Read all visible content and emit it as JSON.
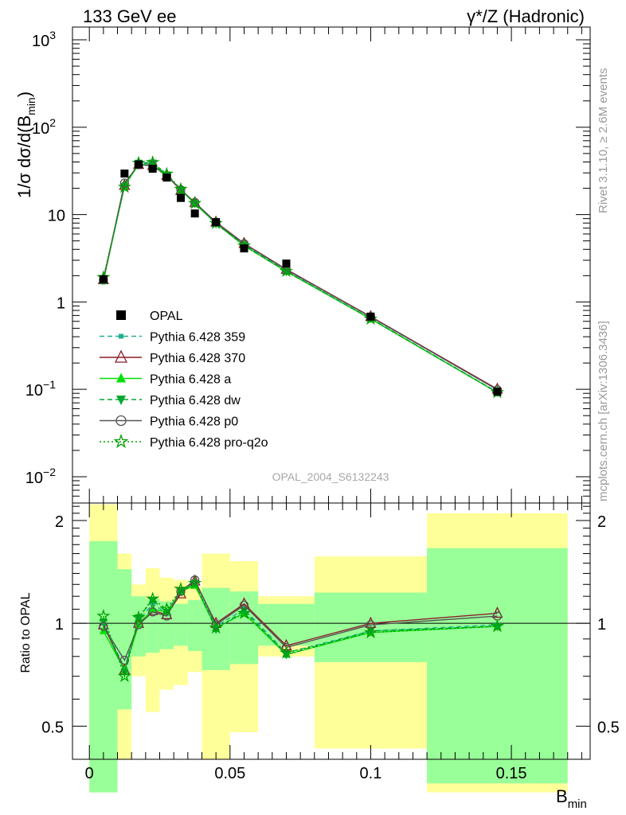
{
  "header": {
    "left": "133 GeV ee",
    "right": "γ*/Z (Hadronic)"
  },
  "side": {
    "rivet": "Rivet 3.1.10, ≥ 2.6M events",
    "mcplots": "mcplots.cern.ch [arXiv:1306.3436]"
  },
  "watermark": "OPAL_2004_S6132243",
  "axes": {
    "main_ylabel": "1/σ dσ/d(B",
    "main_ylabel_sub": "min",
    "main_ylabel_close": ")",
    "ratio_ylabel": "Ratio to OPAL",
    "xlabel": "B",
    "xlabel_sub": "min"
  },
  "chart_data": {
    "type": "line",
    "title": "133 GeV ee",
    "main_yscale": "log",
    "main_ylim": [
      0.005,
      1400
    ],
    "main_yticks": [
      {
        "v": 0.01,
        "base": "10",
        "exp": "−2"
      },
      {
        "v": 0.1,
        "base": "10",
        "exp": "−1"
      },
      {
        "v": 1,
        "base": "1",
        "exp": ""
      },
      {
        "v": 10,
        "base": "10",
        "exp": ""
      },
      {
        "v": 100,
        "base": "10",
        "exp": "2"
      },
      {
        "v": 1000,
        "base": "10",
        "exp": "3"
      }
    ],
    "xlim": [
      -0.006,
      0.178
    ],
    "xticks": [
      {
        "v": 0,
        "label": "0"
      },
      {
        "v": 0.05,
        "label": "0.05"
      },
      {
        "v": 0.1,
        "label": "0.1"
      },
      {
        "v": 0.15,
        "label": "0.15"
      }
    ],
    "ratio_ylim": [
      0.4,
      2.25
    ],
    "ratio_yticks": [
      {
        "v": 0.5,
        "label": "0.5"
      },
      {
        "v": 1,
        "label": "1"
      },
      {
        "v": 2,
        "label": "2"
      }
    ],
    "legend_position": "center-left",
    "x": [
      0.005,
      0.0125,
      0.0175,
      0.0225,
      0.0275,
      0.0325,
      0.0375,
      0.045,
      0.055,
      0.07,
      0.1,
      0.145
    ],
    "data": {
      "name": "OPAL",
      "values": [
        1.82,
        29.5,
        37.5,
        33.5,
        26.5,
        15.5,
        10.3,
        8.2,
        4.1,
        2.75,
        0.68,
        0.094
      ]
    },
    "series": [
      {
        "name": "Pythia 6.428 359",
        "color": "#20b090",
        "marker": "square-small",
        "dash": "6,4",
        "ratio": [
          1.0,
          0.74,
          1.02,
          1.14,
          1.07,
          1.25,
          1.3,
          0.98,
          1.1,
          0.82,
          0.95,
          0.99
        ]
      },
      {
        "name": "Pythia 6.428 370",
        "color": "#8b1c2b",
        "marker": "triangle-open",
        "dash": "",
        "ratio": [
          0.99,
          0.73,
          1.0,
          1.09,
          1.06,
          1.22,
          1.33,
          1.0,
          1.14,
          0.86,
          1.0,
          1.07
        ]
      },
      {
        "name": "Pythia 6.428 a",
        "color": "#00e000",
        "marker": "triangle-filled",
        "dash": "",
        "ratio": [
          0.95,
          0.73,
          0.99,
          1.1,
          1.08,
          1.24,
          1.29,
          0.97,
          1.07,
          0.81,
          0.94,
          0.98
        ]
      },
      {
        "name": "Pythia 6.428 dw",
        "color": "#00a830",
        "marker": "triangle-down",
        "dash": "6,4",
        "ratio": [
          1.01,
          0.72,
          1.04,
          1.17,
          1.08,
          1.24,
          1.31,
          0.96,
          1.09,
          0.81,
          0.95,
          0.98
        ]
      },
      {
        "name": "Pythia 6.428 p0",
        "color": "#555555",
        "marker": "circle-open",
        "dash": "",
        "ratio": [
          0.98,
          0.78,
          0.99,
          1.08,
          1.05,
          1.24,
          1.34,
          0.99,
          1.13,
          0.85,
          0.99,
          1.05
        ]
      },
      {
        "name": "Pythia 6.428 pro-q2o",
        "color": "#00a000",
        "marker": "star-open",
        "dash": "2,3",
        "ratio": [
          1.05,
          0.7,
          1.04,
          1.18,
          1.1,
          1.26,
          1.31,
          0.97,
          1.07,
          0.82,
          0.94,
          0.98
        ]
      }
    ],
    "uncertainty_bands": [
      {
        "x0": 0.0,
        "x1": 0.01,
        "inner": [
          0.32,
          1.74
        ],
        "outer": [
          0.32,
          2.23
        ]
      },
      {
        "x0": 0.01,
        "x1": 0.015,
        "inner": [
          0.56,
          1.44
        ],
        "outer": [
          0.4,
          1.6
        ]
      },
      {
        "x0": 0.015,
        "x1": 0.02,
        "inner": [
          0.8,
          1.2
        ],
        "outer": [
          0.7,
          1.3
        ]
      },
      {
        "x0": 0.02,
        "x1": 0.025,
        "inner": [
          0.82,
          1.18
        ],
        "outer": [
          0.55,
          1.45
        ]
      },
      {
        "x0": 0.025,
        "x1": 0.03,
        "inner": [
          0.84,
          1.16
        ],
        "outer": [
          0.64,
          1.36
        ]
      },
      {
        "x0": 0.03,
        "x1": 0.035,
        "inner": [
          0.86,
          1.14
        ],
        "outer": [
          0.66,
          1.34
        ]
      },
      {
        "x0": 0.035,
        "x1": 0.04,
        "inner": [
          0.83,
          1.17
        ],
        "outer": [
          0.72,
          1.28
        ]
      },
      {
        "x0": 0.04,
        "x1": 0.05,
        "inner": [
          0.73,
          1.27
        ],
        "outer": [
          0.4,
          1.6
        ]
      },
      {
        "x0": 0.05,
        "x1": 0.06,
        "inner": [
          0.76,
          1.24
        ],
        "outer": [
          0.48,
          1.52
        ]
      },
      {
        "x0": 0.06,
        "x1": 0.08,
        "inner": [
          0.86,
          1.14
        ],
        "outer": [
          0.8,
          1.2
        ]
      },
      {
        "x0": 0.08,
        "x1": 0.12,
        "inner": [
          0.77,
          1.23
        ],
        "outer": [
          0.43,
          1.57
        ]
      },
      {
        "x0": 0.12,
        "x1": 0.17,
        "inner": [
          0.34,
          1.66
        ],
        "outer": [
          0.32,
          2.1
        ]
      }
    ]
  }
}
